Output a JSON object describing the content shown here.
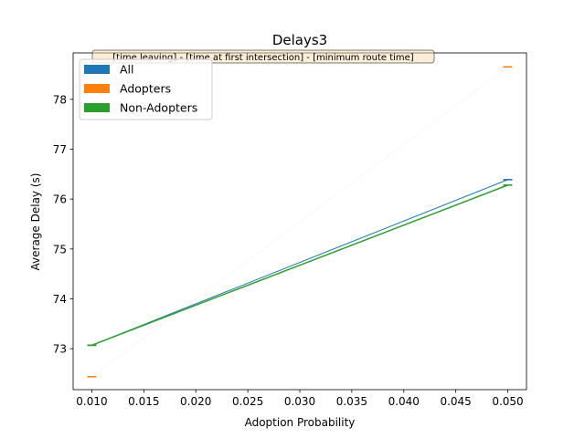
{
  "chart_data": {
    "type": "line",
    "title": "Delays3",
    "xlabel": "Adoption Probability",
    "ylabel": "Average Delay (s)",
    "xlim": [
      0.0082,
      0.0518
    ],
    "ylim": [
      72.18,
      78.93
    ],
    "xticks": [
      "0.010",
      "0.015",
      "0.020",
      "0.025",
      "0.030",
      "0.035",
      "0.040",
      "0.045",
      "0.050"
    ],
    "yticks": [
      "73",
      "74",
      "75",
      "76",
      "77",
      "78"
    ],
    "annotation": "[time leaving] - [time at first intersection] - [minimum route time]",
    "legend_position": "upper-left",
    "series": [
      {
        "name": "All",
        "color": "#1f77b4",
        "x": [
          0.01,
          0.05
        ],
        "y": [
          73.07,
          76.39
        ]
      },
      {
        "name": "Adopters",
        "color": "#ff7f0e",
        "x": [
          0.01,
          0.05
        ],
        "y": [
          72.44,
          78.65
        ]
      },
      {
        "name": "Non-Adopters",
        "color": "#2ca02c",
        "x": [
          0.01,
          0.05
        ],
        "y": [
          73.07,
          76.28
        ]
      }
    ]
  }
}
